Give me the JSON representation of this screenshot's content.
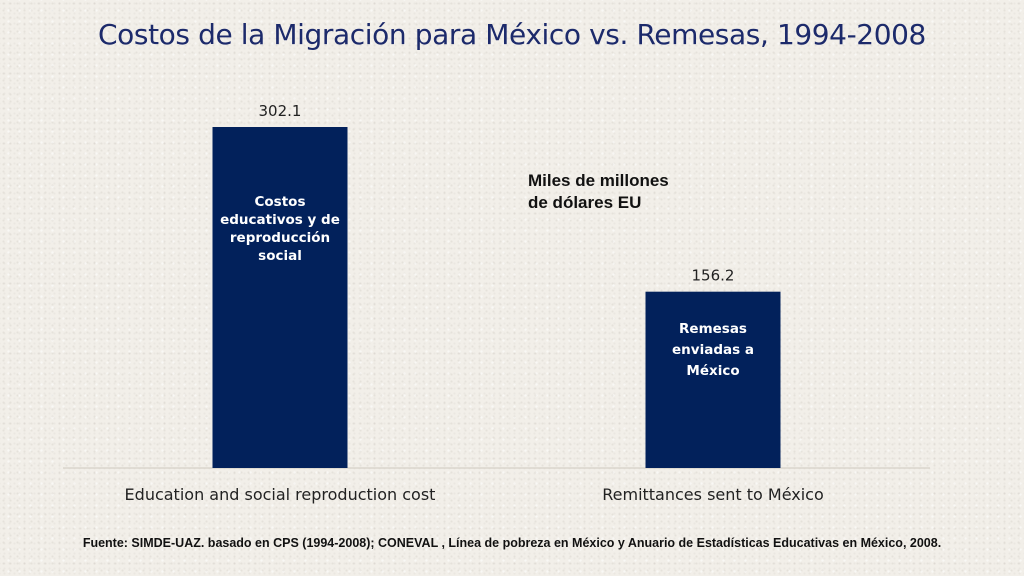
{
  "title": "Costos de la Migración para México vs. Remesas, 1994-2008",
  "units_line1": "Miles de millones",
  "units_line2": "de dólares EU",
  "footnote": "Fuente:  SIMDE-UAZ. basado en CPS (1994-2008); CONEVAL , Línea de pobreza en México y Anuario de Estadísticas Educativas en México, 2008.",
  "bar_color": "#02215b",
  "chart_data": {
    "type": "bar",
    "title": "Costos de la Migración para México vs. Remesas, 1994-2008",
    "ylabel": "",
    "xlabel": "",
    "ylim": [
      0,
      302.1
    ],
    "grid": false,
    "categories": [
      "Education and social reproduction cost",
      "Remittances sent to México"
    ],
    "values": [
      302.1,
      156.2
    ],
    "value_labels": [
      "302.1",
      "156.2"
    ],
    "bar_annotations": [
      [
        "Costos",
        "educativos y de",
        "reproducción",
        "social"
      ],
      [
        "Remesas",
        "enviadas a",
        "México"
      ]
    ]
  }
}
